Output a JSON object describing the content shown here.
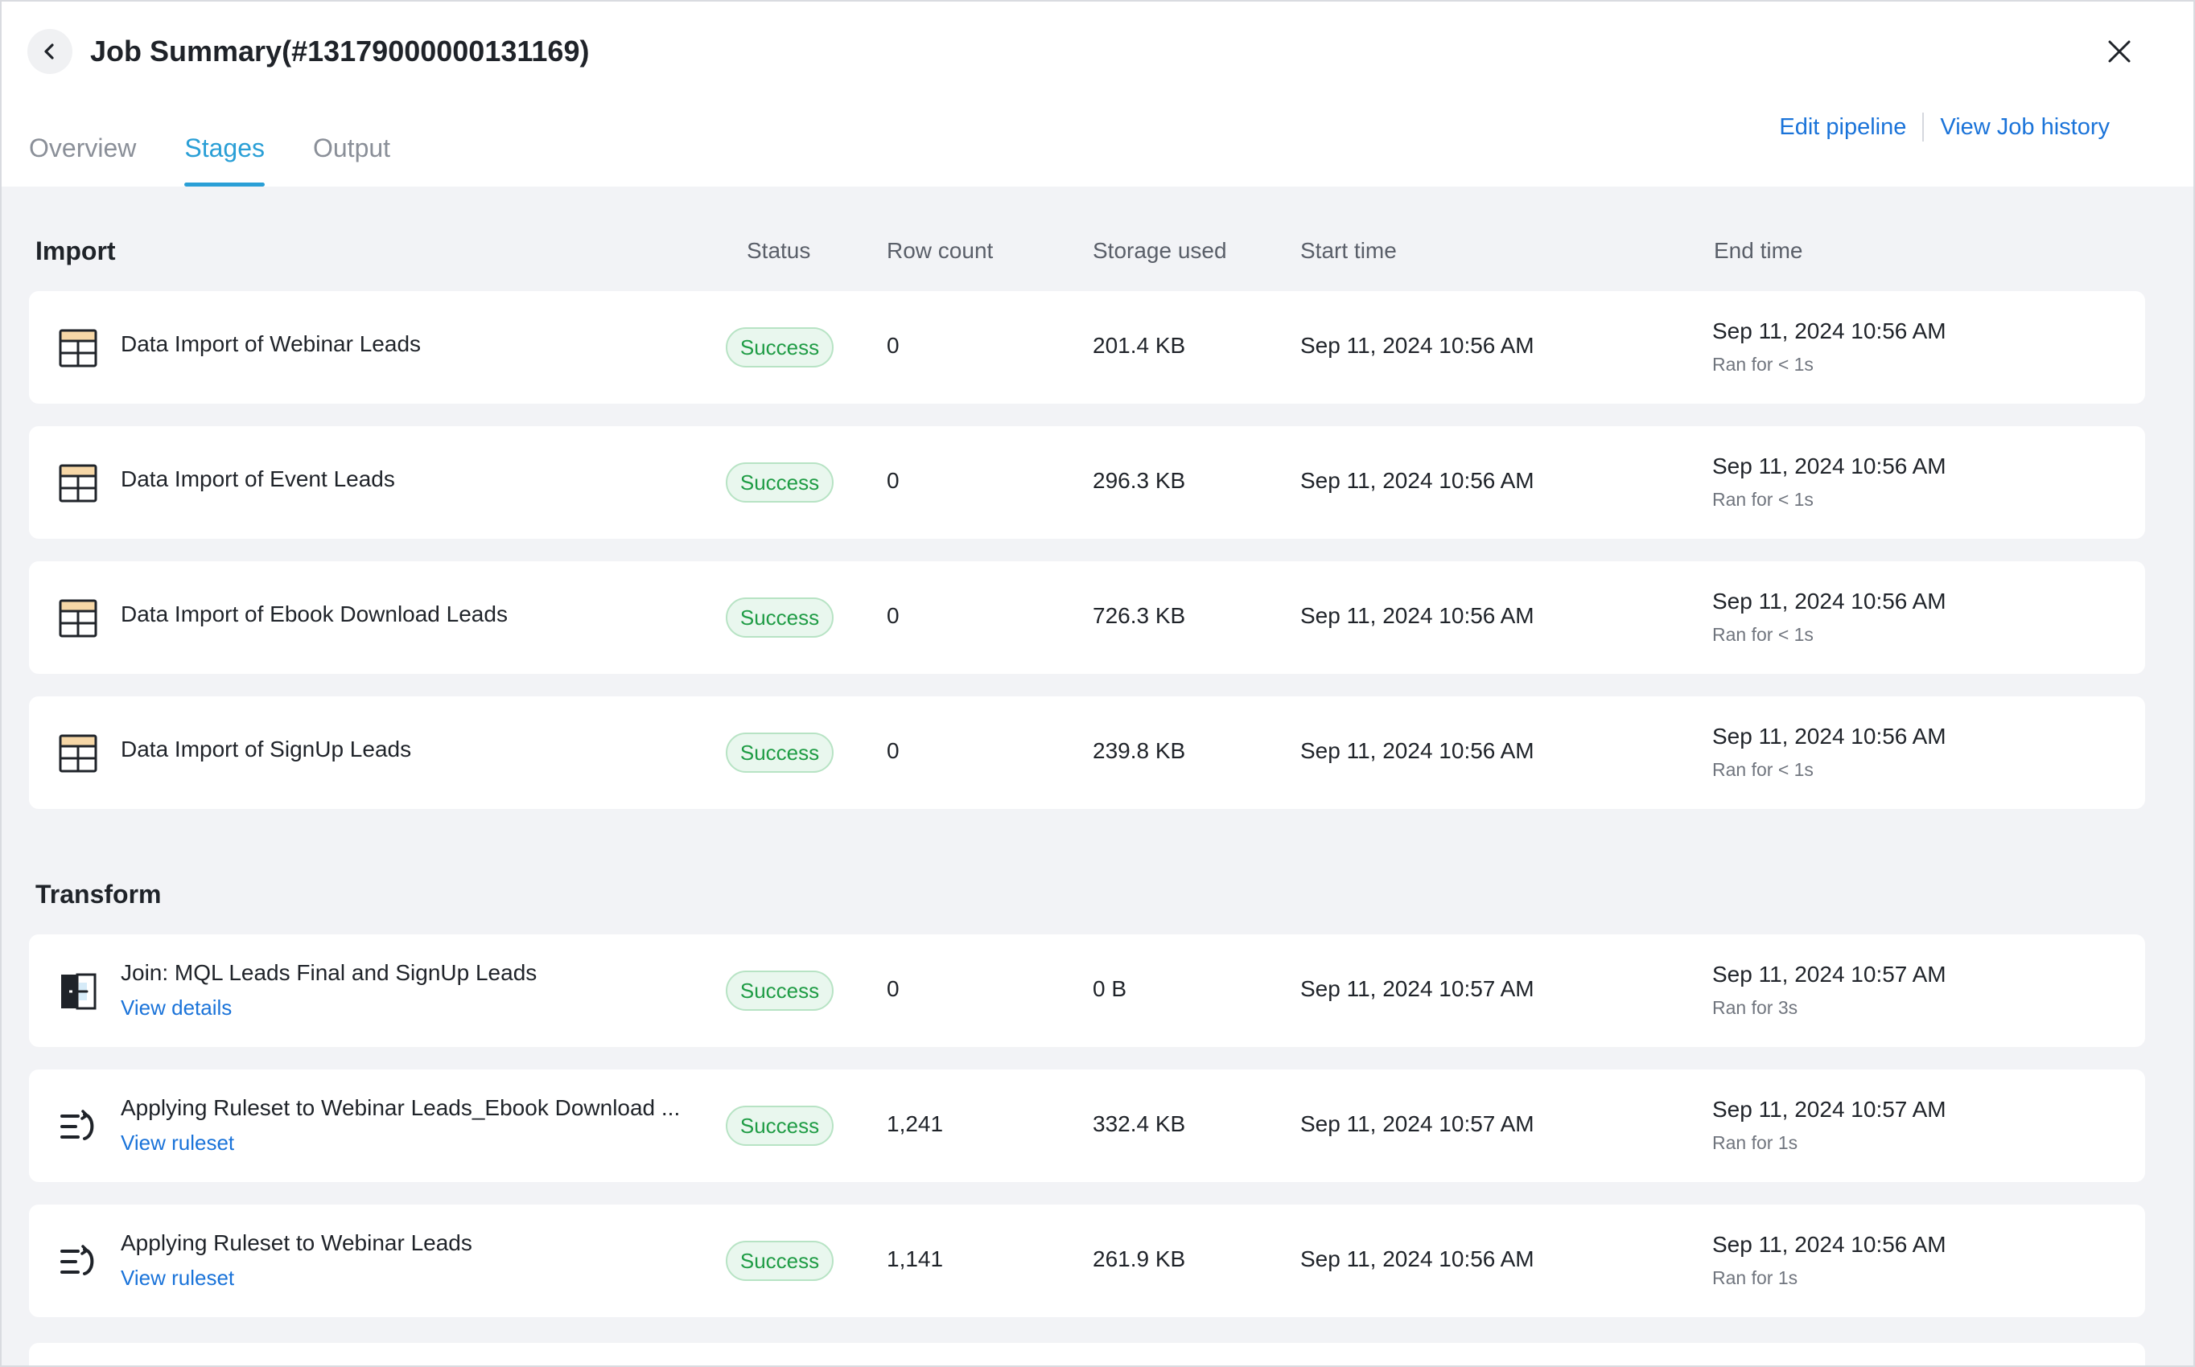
{
  "header": {
    "title": "Job Summary(#13179000000131169)",
    "tabs": [
      "Overview",
      "Stages",
      "Output"
    ],
    "active_tab": "Stages",
    "links": {
      "edit_pipeline": "Edit pipeline",
      "view_job_history": "View Job history"
    }
  },
  "columns": {
    "status": "Status",
    "row_count": "Row count",
    "storage_used": "Storage used",
    "start_time": "Start time",
    "end_time": "End time"
  },
  "sections": {
    "import": {
      "title": "Import",
      "rows": [
        {
          "name": "Data Import of Webinar Leads",
          "status": "Success",
          "row_count": "0",
          "storage": "201.4 KB",
          "start": "Sep 11, 2024 10:56 AM",
          "end": "Sep 11, 2024 10:56 AM",
          "duration": "Ran for < 1s"
        },
        {
          "name": "Data Import of Event Leads",
          "status": "Success",
          "row_count": "0",
          "storage": "296.3 KB",
          "start": "Sep 11, 2024 10:56 AM",
          "end": "Sep 11, 2024 10:56 AM",
          "duration": "Ran for < 1s"
        },
        {
          "name": "Data Import of Ebook Download Leads",
          "status": "Success",
          "row_count": "0",
          "storage": "726.3 KB",
          "start": "Sep 11, 2024 10:56 AM",
          "end": "Sep 11, 2024 10:56 AM",
          "duration": "Ran for < 1s"
        },
        {
          "name": "Data Import of SignUp Leads",
          "status": "Success",
          "row_count": "0",
          "storage": "239.8 KB",
          "start": "Sep 11, 2024 10:56 AM",
          "end": "Sep 11, 2024 10:56 AM",
          "duration": "Ran for < 1s"
        }
      ]
    },
    "transform": {
      "title": "Transform",
      "rows": [
        {
          "icon": "join-icon",
          "name": "Join: MQL Leads Final and SignUp Leads",
          "link": "View details",
          "status": "Success",
          "row_count": "0",
          "storage": "0 B",
          "start": "Sep 11, 2024 10:57 AM",
          "end": "Sep 11, 2024 10:57 AM",
          "duration": "Ran for 3s"
        },
        {
          "icon": "ruleset-icon",
          "name": "Applying Ruleset to Webinar Leads_Ebook Download ...",
          "link": "View ruleset",
          "status": "Success",
          "row_count": "1,241",
          "storage": "332.4 KB",
          "start": "Sep 11, 2024 10:57 AM",
          "end": "Sep 11, 2024 10:57 AM",
          "duration": "Ran for 1s"
        },
        {
          "icon": "ruleset-icon",
          "name": "Applying Ruleset to Webinar Leads",
          "link": "View ruleset",
          "status": "Success",
          "row_count": "1,141",
          "storage": "261.9 KB",
          "start": "Sep 11, 2024 10:56 AM",
          "end": "Sep 11, 2024 10:56 AM",
          "duration": "Ran for 1s"
        }
      ]
    }
  },
  "icons": {
    "back": "chevron-left-icon",
    "close": "close-icon",
    "import_row": "table-icon"
  },
  "colors": {
    "accent": "#2a9fd6",
    "link": "#1a73d9",
    "success_text": "#1f9c45",
    "success_bg": "#e9f7ee"
  }
}
